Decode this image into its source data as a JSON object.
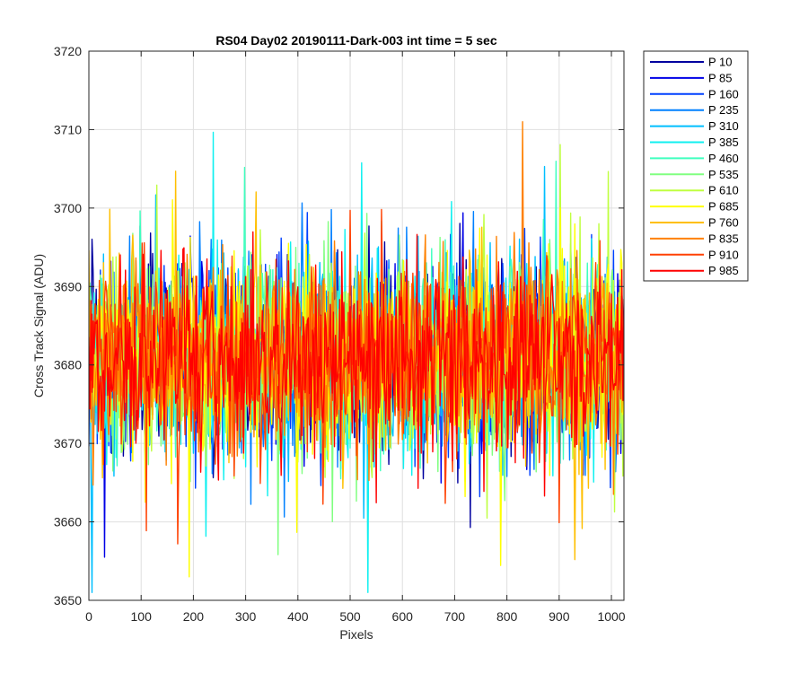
{
  "chart_data": {
    "type": "line",
    "title": "RS04 Day02 20190111-Dark-003 int time = 5 sec",
    "xlabel": "Pixels",
    "ylabel": "Cross Track Signal (ADU)",
    "xlim": [
      0,
      1024
    ],
    "ylim": [
      3650,
      3720
    ],
    "xticks": [
      0,
      100,
      200,
      300,
      400,
      500,
      600,
      700,
      800,
      900,
      1000
    ],
    "yticks": [
      3650,
      3660,
      3670,
      3680,
      3690,
      3700,
      3710,
      3720
    ],
    "grid": true,
    "legend_position": "outside-top-right",
    "signal_mean": 3681,
    "signal_noise_std": 6,
    "series": [
      {
        "name": "P 10",
        "color": "#00009f"
      },
      {
        "name": "P 85",
        "color": "#0000e6"
      },
      {
        "name": "P 160",
        "color": "#0040ff"
      },
      {
        "name": "P 235",
        "color": "#0080ff"
      },
      {
        "name": "P 310",
        "color": "#00bfff"
      },
      {
        "name": "P 385",
        "color": "#10f0f0"
      },
      {
        "name": "P 460",
        "color": "#40ffbf"
      },
      {
        "name": "P 535",
        "color": "#80ff80"
      },
      {
        "name": "P 610",
        "color": "#bfff40"
      },
      {
        "name": "P 685",
        "color": "#ffff00"
      },
      {
        "name": "P 760",
        "color": "#ffbf00"
      },
      {
        "name": "P 835",
        "color": "#ff8000"
      },
      {
        "name": "P 910",
        "color": "#ff4000"
      },
      {
        "name": "P 985",
        "color": "#ff0000"
      }
    ]
  }
}
